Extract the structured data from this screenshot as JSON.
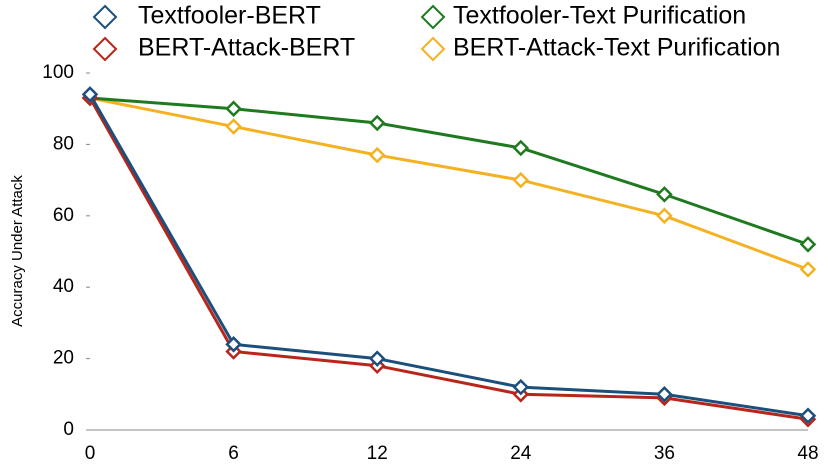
{
  "chart_data": {
    "type": "line",
    "y_label": "Accuracy Under Attack",
    "categories": [
      "0",
      "6",
      "12",
      "24",
      "36",
      "48"
    ],
    "ylim": [
      0,
      100
    ],
    "yticks": [
      0,
      20,
      40,
      60,
      80,
      100
    ],
    "series": [
      {
        "name": "Textfooler-BERT",
        "color": "#1c4f7c",
        "values": [
          94,
          24,
          20,
          12,
          10,
          4
        ]
      },
      {
        "name": "Textfooler-Text Purification",
        "color": "#1f7a1f",
        "values": [
          93,
          90,
          86,
          79,
          66,
          52
        ]
      },
      {
        "name": "BERT-Attack-BERT",
        "color": "#b8261b",
        "values": [
          93,
          22,
          18,
          10,
          9,
          3
        ]
      },
      {
        "name": "BERT-Attack-Text Purification",
        "color": "#f4b223",
        "values": [
          93,
          85,
          77,
          70,
          60,
          45
        ]
      }
    ]
  }
}
